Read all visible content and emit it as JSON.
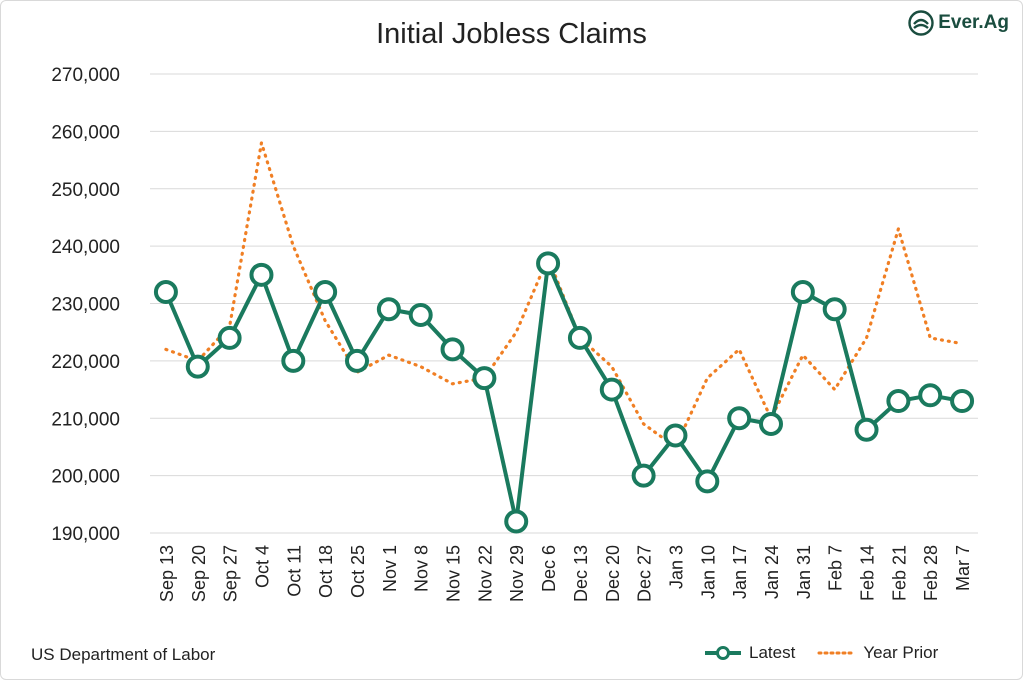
{
  "title": "Initial Jobless Claims",
  "source": "US Department of Labor",
  "logo_text": "Ever.Ag",
  "colors": {
    "latest": "#1a7a5e",
    "prior": "#f07f24",
    "grid": "#d9d9d9",
    "text": "#222222"
  },
  "chart_data": {
    "type": "line",
    "title": "Initial Jobless Claims",
    "categories": [
      "Sep 13",
      "Sep 20",
      "Sep 27",
      "Oct 4",
      "Oct 11",
      "Oct 18",
      "Oct 25",
      "Nov 1",
      "Nov 8",
      "Nov 15",
      "Nov 22",
      "Nov 29",
      "Dec 6",
      "Dec 13",
      "Dec 20",
      "Dec 27",
      "Jan 3",
      "Jan 10",
      "Jan 17",
      "Jan 24",
      "Jan 31",
      "Feb 7",
      "Feb 14",
      "Feb 21",
      "Feb 28",
      "Mar 7"
    ],
    "series": [
      {
        "name": "Latest",
        "style": "solid-markers",
        "values": [
          232000,
          219000,
          224000,
          235000,
          220000,
          232000,
          220000,
          229000,
          228000,
          222000,
          217000,
          192000,
          237000,
          224000,
          215000,
          200000,
          207000,
          199000,
          210000,
          209000,
          232000,
          229000,
          208000,
          213000,
          214000,
          213000
        ]
      },
      {
        "name": "Year Prior",
        "style": "dotted",
        "values": [
          222000,
          220000,
          226000,
          258000,
          240000,
          227000,
          218000,
          221000,
          219000,
          216000,
          217000,
          225000,
          238000,
          224000,
          219000,
          209000,
          205000,
          217000,
          222000,
          210000,
          221000,
          215000,
          224000,
          243000,
          224000,
          223000
        ]
      }
    ],
    "ylim": [
      190000,
      270000
    ],
    "yticks": [
      190000,
      200000,
      210000,
      220000,
      230000,
      240000,
      250000,
      260000,
      270000
    ],
    "ytick_labels": [
      "190,000",
      "200,000",
      "210,000",
      "220,000",
      "230,000",
      "240,000",
      "250,000",
      "260,000",
      "270,000"
    ],
    "grid": true,
    "legend": "bottom-right"
  }
}
